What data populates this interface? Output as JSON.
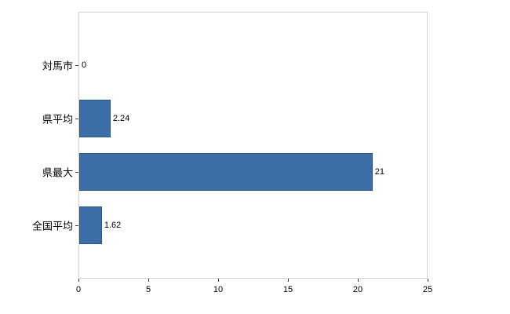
{
  "chart_data": {
    "type": "bar",
    "orientation": "horizontal",
    "title": "",
    "xlabel": "",
    "ylabel": "",
    "categories": [
      "対馬市",
      "県平均",
      "県最大",
      "全国平均"
    ],
    "values": [
      0,
      2.24,
      21,
      1.62
    ],
    "value_labels": [
      "0",
      "2.24",
      "21",
      "1.62"
    ],
    "xlim": [
      0,
      25
    ],
    "x_ticks": [
      0,
      5,
      10,
      15,
      20,
      25
    ],
    "legend": false,
    "grid": false,
    "colors": {
      "bar_fill": "#3d6da6",
      "bar_border": "#2e5884",
      "plot_border": "#d3d3d3",
      "tick": "#3c3c3c",
      "text": "#000000",
      "background": "#ffffff"
    }
  }
}
